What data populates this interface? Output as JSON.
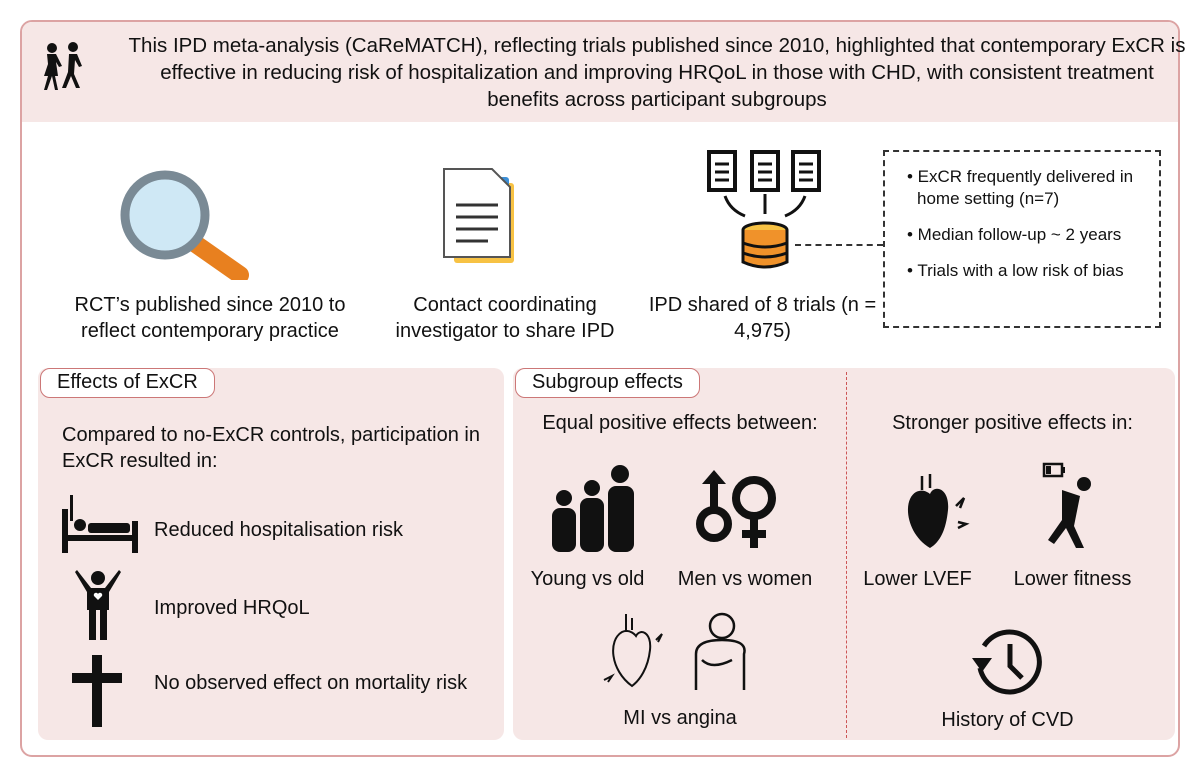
{
  "header": {
    "text": "This IPD meta-analysis (CaReMATCH), reflecting trials published since 2010, highlighted that contemporary ExCR is effective in reducing risk of hospitalization and improving HRQoL in those with CHD, with consistent treatment benefits across participant subgroups"
  },
  "process": [
    {
      "icon": "magnifying-glass-icon",
      "label": "RCT’s published since 2010 to reflect contemporary practice"
    },
    {
      "icon": "documents-icon",
      "label": "Contact coordinating investigator to share IPD"
    },
    {
      "icon": "database-icon",
      "label": "IPD shared of 8 trials (n = 4,975)"
    }
  ],
  "bullets": [
    "• ExCR frequently delivered in home setting (n=7)",
    "• Median follow-up ~ 2 years",
    "• Trials with a low risk of bias"
  ],
  "effects": {
    "tag": "Effects of ExCR",
    "intro": "Compared to no-ExCR controls, participation in ExCR resulted in:",
    "items": [
      {
        "icon": "hospital-bed-icon",
        "label": "Reduced hospitalisation risk"
      },
      {
        "icon": "raised-arms-person-icon",
        "label": "Improved HRQoL"
      },
      {
        "icon": "cross-icon",
        "label": "No observed effect on mortality risk"
      }
    ]
  },
  "subgroup": {
    "tag": "Subgroup effects",
    "equal_title": "Equal positive effects between:",
    "equal": [
      "Young vs old",
      "Men vs women",
      "MI vs angina"
    ],
    "stronger_title": "Stronger positive effects in:",
    "stronger": [
      "Lower LVEF",
      "Lower fitness",
      "History of CVD"
    ]
  },
  "colors": {
    "panel": "#f6e7e6",
    "border": "#dca3a3",
    "accent_orange": "#f0922a",
    "accent_yellow": "#f7c244"
  }
}
